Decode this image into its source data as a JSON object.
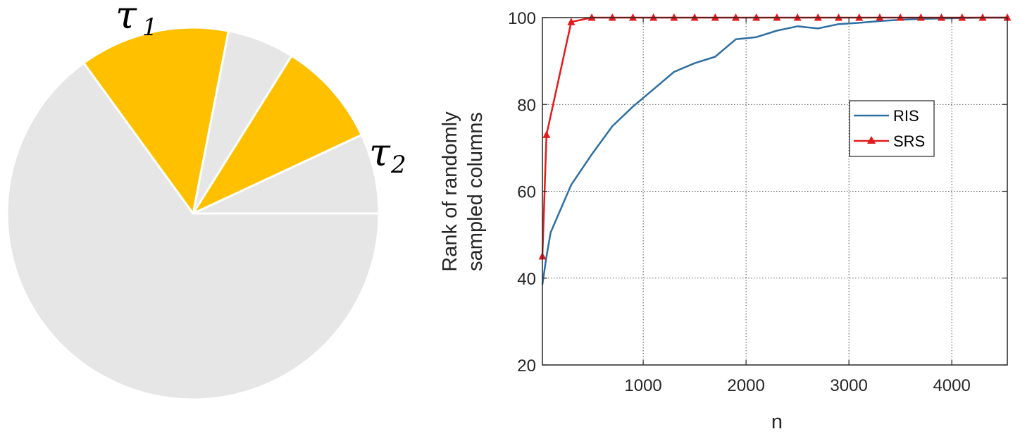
{
  "chart_data": [
    {
      "type": "pie",
      "title": "",
      "slices": [
        {
          "label": "",
          "start_deg": 0,
          "end_deg": 25,
          "highlight": false
        },
        {
          "label": "τ2",
          "start_deg": 25,
          "end_deg": 58,
          "highlight": true
        },
        {
          "label": "",
          "start_deg": 58,
          "end_deg": 79,
          "highlight": false
        },
        {
          "label": "τ1",
          "start_deg": 79,
          "end_deg": 126,
          "highlight": true
        },
        {
          "label": "",
          "start_deg": 126,
          "end_deg": 360,
          "highlight": false
        }
      ],
      "labels": {
        "tau1": {
          "symbol": "τ",
          "sub": "1"
        },
        "tau2": {
          "symbol": "τ",
          "sub": "2"
        }
      },
      "colors": {
        "highlight": "#FFC000",
        "base": "#E6E6E6",
        "edge": "#FFFFFF"
      }
    },
    {
      "type": "line",
      "title": "",
      "xlabel": "n",
      "ylabel_lines": [
        "Rank of randomly",
        "sampled columns"
      ],
      "xlim": [
        20,
        4540
      ],
      "ylim": [
        20,
        100
      ],
      "xticks": [
        1000,
        2000,
        3000,
        4000
      ],
      "yticks": [
        20,
        40,
        60,
        80,
        100
      ],
      "xtick_labels": [
        "1000",
        "2000",
        "3000",
        "4000"
      ],
      "ytick_labels": [
        "20",
        "40",
        "60",
        "80",
        "100"
      ],
      "grid": true,
      "legend_position": "upper-right inside",
      "series": [
        {
          "name": "RIS",
          "color": "#2E6FA3",
          "marker": "none",
          "x": [
            20,
            60,
            100,
            300,
            500,
            700,
            900,
            1100,
            1300,
            1500,
            1700,
            1900,
            2100,
            2300,
            2500,
            2700,
            2900,
            3100,
            3300,
            3500,
            3700,
            3900,
            4100,
            4300,
            4540
          ],
          "y": [
            38.5,
            45,
            50.5,
            61.5,
            68.5,
            75,
            79.5,
            83.5,
            87.5,
            89.5,
            91,
            95,
            95.5,
            97,
            98,
            97.5,
            98.5,
            98.8,
            99.2,
            99.5,
            99.7,
            99.8,
            99.9,
            100,
            100
          ]
        },
        {
          "name": "SRS",
          "color": "#E31A1C",
          "marker": "triangle",
          "x": [
            20,
            60,
            300,
            500,
            700,
            900,
            1100,
            1300,
            1500,
            1700,
            1900,
            2100,
            2300,
            2500,
            2700,
            2900,
            3100,
            3300,
            3500,
            3700,
            3900,
            4100,
            4300,
            4540
          ],
          "y": [
            45,
            73,
            99,
            100,
            100,
            100,
            100,
            100,
            100,
            100,
            100,
            100,
            100,
            100,
            100,
            100,
            100,
            100,
            100,
            100,
            100,
            100,
            100,
            100
          ]
        }
      ]
    }
  ]
}
